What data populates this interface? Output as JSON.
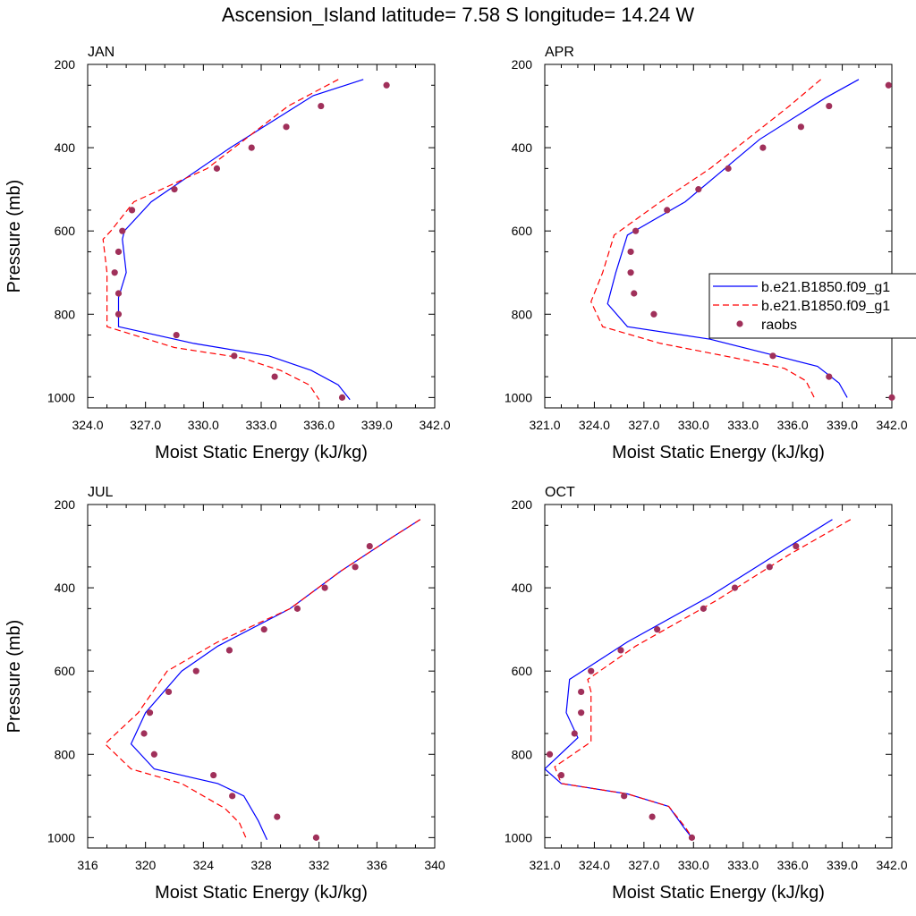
{
  "title": "Ascension_Island  latitude= 7.58 S longitude= 14.24 W",
  "legend": {
    "entries": [
      {
        "label": "b.e21.B1850.f09_g1",
        "color": "#0000ff",
        "style": "solid"
      },
      {
        "label": "b.e21.B1850.f09_g1",
        "color": "#ff0000",
        "style": "dashed"
      },
      {
        "label": "raobs",
        "color": "#a0305a",
        "style": "dot"
      }
    ],
    "placement": "right of APR panel"
  },
  "colors": {
    "series1": "#0000ff",
    "series2": "#ff0000",
    "obs": "#a0305a"
  },
  "chart_data": [
    {
      "type": "line",
      "panel": "JAN",
      "xlabel": "Moist Static Energy (kJ/kg)",
      "ylabel": "Pressure (mb)",
      "xlim": [
        324,
        342
      ],
      "xticks": [
        "324.0",
        "327.0",
        "330.0",
        "333.0",
        "336.0",
        "339.0",
        "342.0"
      ],
      "ylim": [
        200,
        1025
      ],
      "yticks": [
        "200",
        "400",
        "600",
        "800",
        "1000"
      ],
      "y_reversed": true,
      "series": [
        {
          "style": "solid",
          "color": "#0000ff",
          "points": [
            [
              338.3,
              236
            ],
            [
              335.7,
              275
            ],
            [
              331.4,
              400
            ],
            [
              327.3,
              530
            ],
            [
              325.9,
              600
            ],
            [
              325.8,
              620
            ],
            [
              326.0,
              700
            ],
            [
              325.6,
              760
            ],
            [
              325.6,
              830
            ],
            [
              329.5,
              870
            ],
            [
              333.4,
              900
            ],
            [
              335.6,
              935
            ],
            [
              337.0,
              970
            ],
            [
              337.6,
              1005
            ]
          ]
        },
        {
          "style": "dashed",
          "color": "#ff0000",
          "points": [
            [
              337.0,
              236
            ],
            [
              334.4,
              300
            ],
            [
              330.2,
              450
            ],
            [
              326.4,
              530
            ],
            [
              325.2,
              600
            ],
            [
              324.8,
              620
            ],
            [
              325.0,
              700
            ],
            [
              325.0,
              800
            ],
            [
              325.0,
              830
            ],
            [
              328.5,
              880
            ],
            [
              332.0,
              905
            ],
            [
              334.0,
              935
            ],
            [
              335.5,
              970
            ],
            [
              336.0,
              1005
            ]
          ]
        },
        {
          "style": "dot",
          "color": "#a0305a",
          "points": [
            [
              339.5,
              250
            ],
            [
              336.1,
              300
            ],
            [
              334.3,
              350
            ],
            [
              332.5,
              400
            ],
            [
              330.7,
              450
            ],
            [
              328.5,
              500
            ],
            [
              326.3,
              550
            ],
            [
              325.8,
              600
            ],
            [
              325.6,
              650
            ],
            [
              325.4,
              700
            ],
            [
              325.6,
              750
            ],
            [
              325.6,
              800
            ],
            [
              328.6,
              850
            ],
            [
              331.6,
              900
            ],
            [
              333.7,
              950
            ],
            [
              337.2,
              1000
            ]
          ]
        }
      ]
    },
    {
      "type": "line",
      "panel": "APR",
      "xlabel": "Moist Static Energy (kJ/kg)",
      "ylabel": "",
      "xlim": [
        321,
        342
      ],
      "xticks": [
        "321.0",
        "324.0",
        "327.0",
        "330.0",
        "333.0",
        "336.0",
        "339.0",
        "342.0"
      ],
      "ylim": [
        200,
        1025
      ],
      "yticks": [
        "200",
        "400",
        "600",
        "800",
        "1000"
      ],
      "y_reversed": true,
      "series": [
        {
          "style": "solid",
          "color": "#0000ff",
          "points": [
            [
              340.0,
              236
            ],
            [
              338.0,
              280
            ],
            [
              334.0,
              380
            ],
            [
              329.5,
              530
            ],
            [
              326.0,
              610
            ],
            [
              325.3,
              700
            ],
            [
              324.8,
              775
            ],
            [
              326.0,
              830
            ],
            [
              331.0,
              860
            ],
            [
              335.0,
              900
            ],
            [
              337.5,
              925
            ],
            [
              338.8,
              965
            ],
            [
              339.3,
              1000
            ]
          ]
        },
        {
          "style": "dashed",
          "color": "#ff0000",
          "points": [
            [
              337.7,
              236
            ],
            [
              335.8,
              300
            ],
            [
              331.0,
              450
            ],
            [
              328.0,
              530
            ],
            [
              325.2,
              610
            ],
            [
              324.5,
              700
            ],
            [
              323.8,
              770
            ],
            [
              324.5,
              830
            ],
            [
              328.0,
              870
            ],
            [
              332.5,
              905
            ],
            [
              335.5,
              930
            ],
            [
              336.8,
              960
            ],
            [
              337.3,
              1000
            ]
          ]
        },
        {
          "style": "dot",
          "color": "#a0305a",
          "points": [
            [
              341.8,
              250
            ],
            [
              338.2,
              300
            ],
            [
              336.5,
              350
            ],
            [
              334.2,
              400
            ],
            [
              332.1,
              450
            ],
            [
              330.3,
              500
            ],
            [
              328.4,
              550
            ],
            [
              326.5,
              600
            ],
            [
              326.2,
              650
            ],
            [
              326.2,
              700
            ],
            [
              326.4,
              750
            ],
            [
              327.6,
              800
            ],
            [
              331.5,
              850
            ],
            [
              334.8,
              900
            ],
            [
              338.2,
              950
            ],
            [
              342.0,
              1000
            ]
          ]
        }
      ]
    },
    {
      "type": "line",
      "panel": "JUL",
      "xlabel": "Moist Static Energy (kJ/kg)",
      "ylabel": "Pressure (mb)",
      "xlim": [
        316,
        340
      ],
      "xticks": [
        "316",
        "320",
        "324",
        "328",
        "332",
        "336",
        "340"
      ],
      "ylim": [
        200,
        1025
      ],
      "yticks": [
        "200",
        "400",
        "600",
        "800",
        "1000"
      ],
      "y_reversed": true,
      "series": [
        {
          "style": "solid",
          "color": "#0000ff",
          "points": [
            [
              339.0,
              236
            ],
            [
              337.0,
              280
            ],
            [
              333.5,
              360
            ],
            [
              330.0,
              450
            ],
            [
              325.0,
              540
            ],
            [
              322.5,
              600
            ],
            [
              320.0,
              700
            ],
            [
              319.0,
              775
            ],
            [
              320.6,
              835
            ],
            [
              325.0,
              870
            ],
            [
              326.8,
              900
            ],
            [
              327.8,
              960
            ],
            [
              328.4,
              1005
            ]
          ]
        },
        {
          "style": "dashed",
          "color": "#ff0000",
          "points": [
            [
              339.0,
              236
            ],
            [
              337.0,
              280
            ],
            [
              333.5,
              360
            ],
            [
              330.0,
              450
            ],
            [
              325.0,
              530
            ],
            [
              321.5,
              600
            ],
            [
              319.5,
              700
            ],
            [
              317.2,
              775
            ],
            [
              319.0,
              835
            ],
            [
              322.5,
              870
            ],
            [
              325.5,
              930
            ],
            [
              326.5,
              965
            ],
            [
              327.0,
              1005
            ]
          ]
        },
        {
          "style": "dot",
          "color": "#a0305a",
          "points": [
            [
              335.5,
              300
            ],
            [
              334.5,
              350
            ],
            [
              332.4,
              400
            ],
            [
              330.5,
              450
            ],
            [
              328.2,
              500
            ],
            [
              325.8,
              550
            ],
            [
              323.5,
              600
            ],
            [
              321.6,
              650
            ],
            [
              320.3,
              700
            ],
            [
              319.9,
              750
            ],
            [
              320.6,
              800
            ],
            [
              324.7,
              850
            ],
            [
              326.0,
              900
            ],
            [
              329.1,
              950
            ],
            [
              331.8,
              1000
            ]
          ]
        }
      ]
    },
    {
      "type": "line",
      "panel": "OCT",
      "xlabel": "Moist Static Energy (kJ/kg)",
      "ylabel": "",
      "xlim": [
        321,
        342
      ],
      "xticks": [
        "321.0",
        "324.0",
        "327.0",
        "330.0",
        "333.0",
        "336.0",
        "339.0",
        "342.0"
      ],
      "ylim": [
        200,
        1025
      ],
      "yticks": [
        "200",
        "400",
        "600",
        "800",
        "1000"
      ],
      "y_reversed": true,
      "series": [
        {
          "style": "solid",
          "color": "#0000ff",
          "points": [
            [
              338.4,
              236
            ],
            [
              335.0,
              320
            ],
            [
              331.0,
              420
            ],
            [
              326.0,
              530
            ],
            [
              322.5,
              620
            ],
            [
              322.3,
              700
            ],
            [
              323.0,
              760
            ],
            [
              321.0,
              835
            ],
            [
              322.0,
              870
            ],
            [
              326.0,
              895
            ],
            [
              328.5,
              925
            ],
            [
              329.5,
              980
            ],
            [
              330.0,
              1005
            ]
          ]
        },
        {
          "style": "dashed",
          "color": "#ff0000",
          "points": [
            [
              339.5,
              236
            ],
            [
              335.8,
              320
            ],
            [
              331.4,
              430
            ],
            [
              326.5,
              540
            ],
            [
              323.6,
              620
            ],
            [
              323.8,
              650
            ],
            [
              323.8,
              770
            ],
            [
              321.6,
              830
            ],
            [
              322.0,
              870
            ],
            [
              326.0,
              895
            ],
            [
              328.5,
              925
            ],
            [
              329.5,
              975
            ],
            [
              330.0,
              1005
            ]
          ]
        },
        {
          "style": "dot",
          "color": "#a0305a",
          "points": [
            [
              336.2,
              300
            ],
            [
              334.6,
              350
            ],
            [
              332.5,
              400
            ],
            [
              330.6,
              450
            ],
            [
              327.8,
              500
            ],
            [
              325.6,
              550
            ],
            [
              323.8,
              600
            ],
            [
              323.2,
              650
            ],
            [
              323.2,
              700
            ],
            [
              322.8,
              750
            ],
            [
              321.3,
              800
            ],
            [
              322.0,
              850
            ],
            [
              325.8,
              900
            ],
            [
              327.5,
              950
            ],
            [
              329.9,
              1000
            ]
          ]
        }
      ]
    }
  ]
}
